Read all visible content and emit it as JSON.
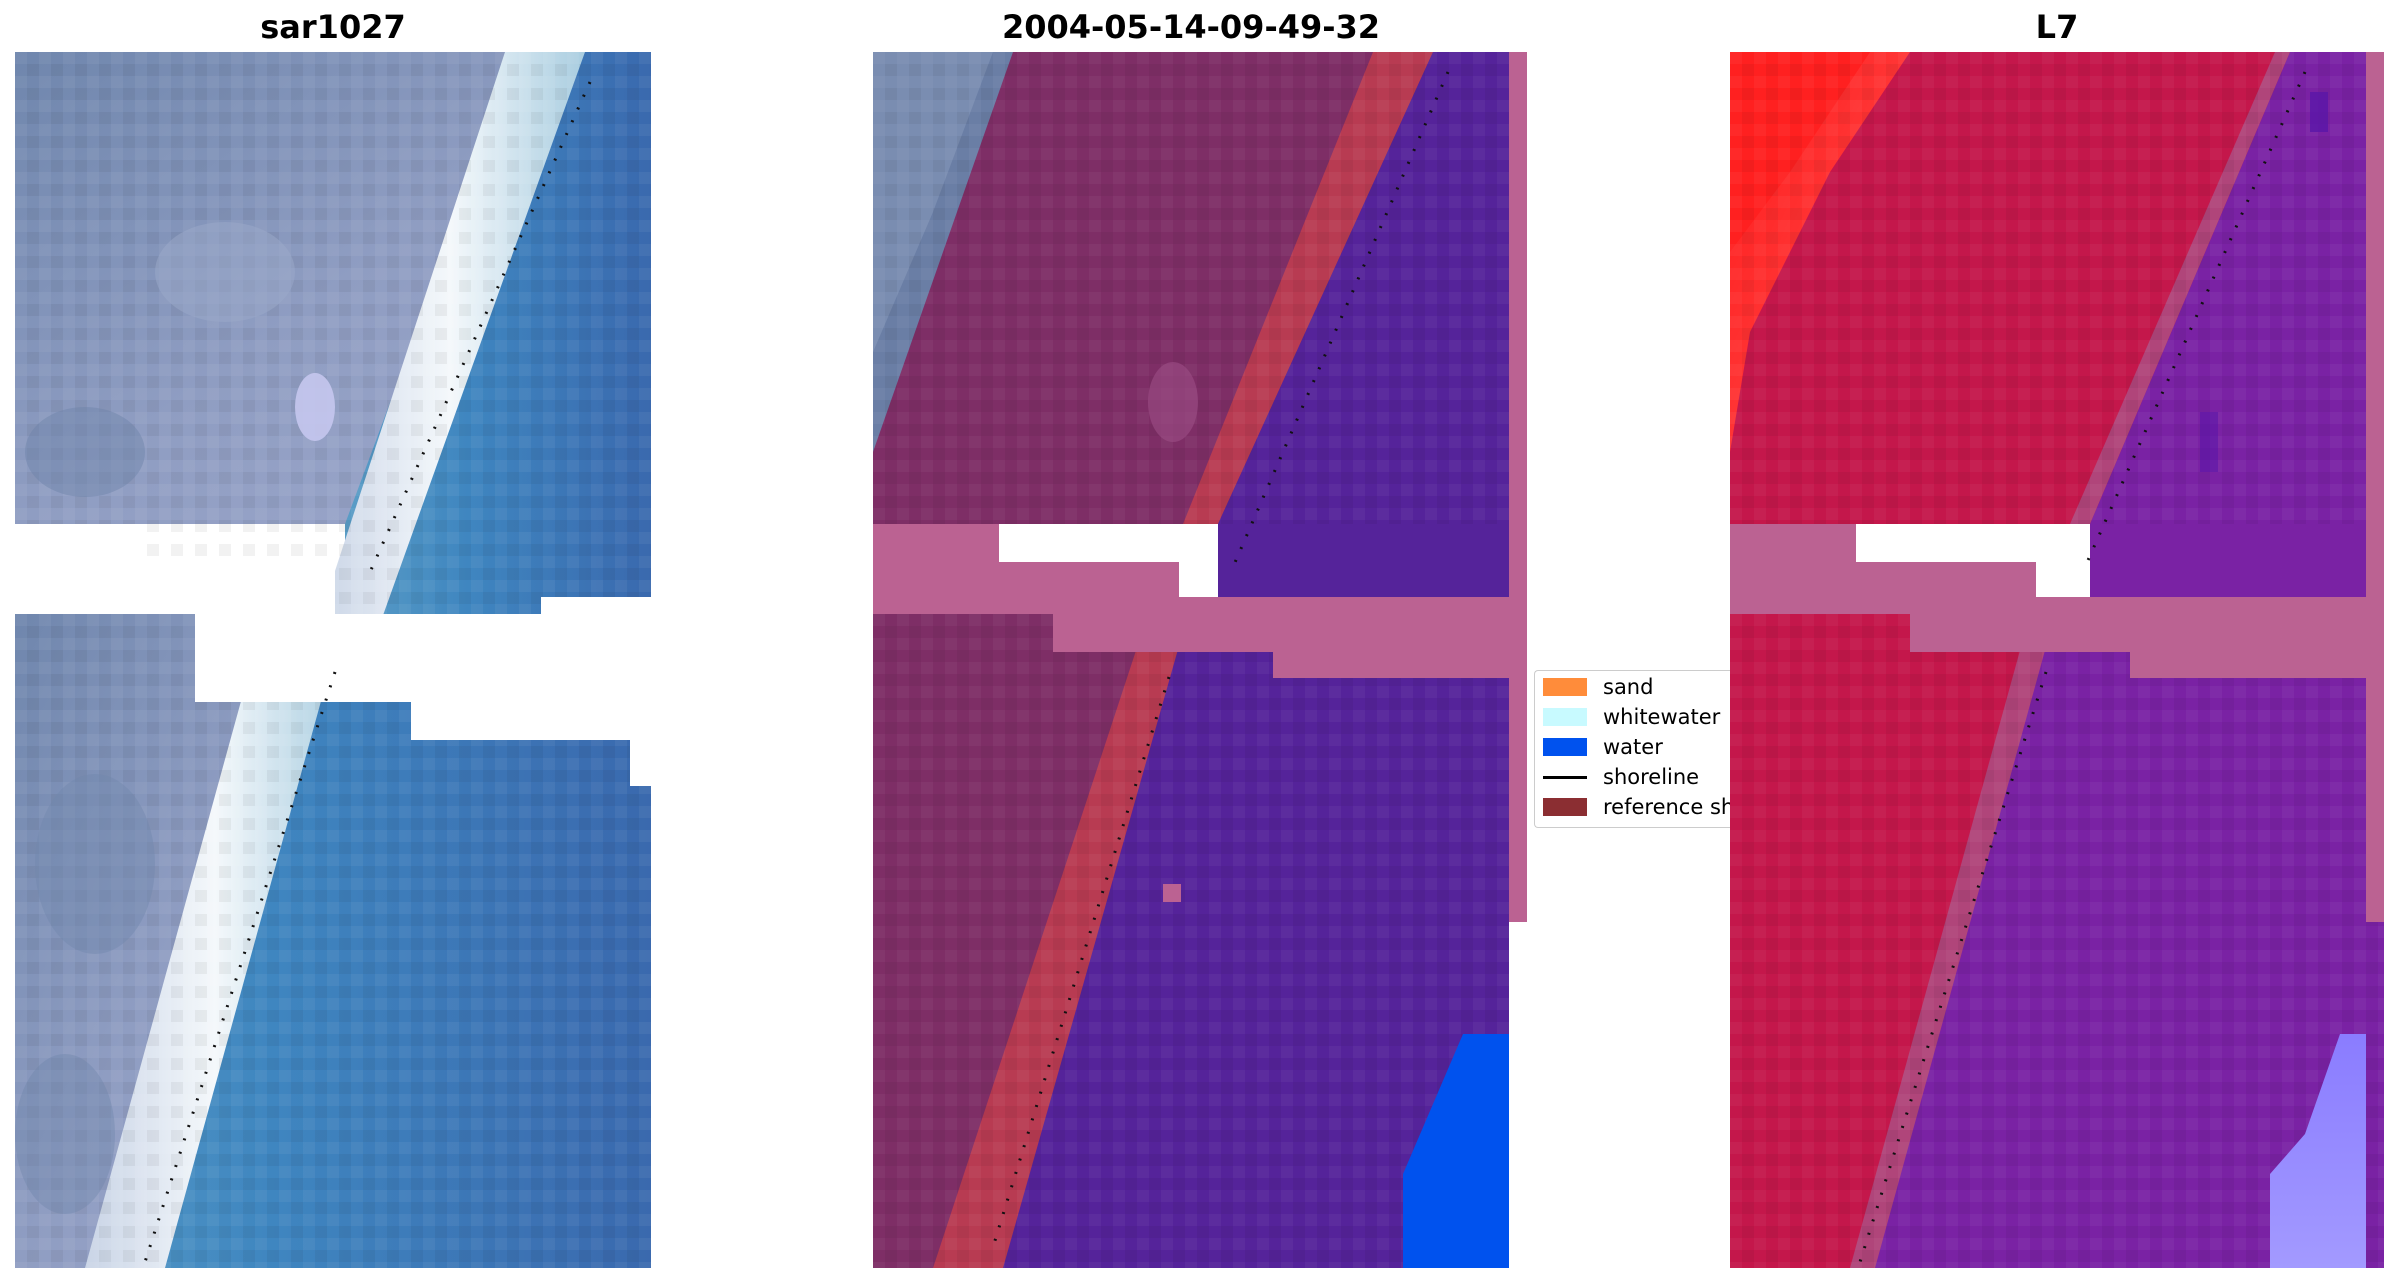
{
  "panels": {
    "left_title": "sar1027",
    "middle_title": "2004-05-14-09-49-32",
    "right_title": "L7"
  },
  "legend": {
    "items": [
      {
        "label": "sand",
        "color": "#ff8c3a"
      },
      {
        "label": "whitewater",
        "color": "#c8faff"
      },
      {
        "label": "water",
        "color": "#0052ee"
      },
      {
        "label": "shoreline",
        "color": "#000000"
      },
      {
        "label": "reference shoreline",
        "color": "#8b2e32"
      }
    ]
  },
  "colors": {
    "nodata_band": "#bb6292",
    "classified_land": "#7e2e66",
    "classified_water": "#55239a",
    "sand_overlay": "#b83b52",
    "index_land": "#c4174b",
    "index_water": "#7a22a4"
  }
}
